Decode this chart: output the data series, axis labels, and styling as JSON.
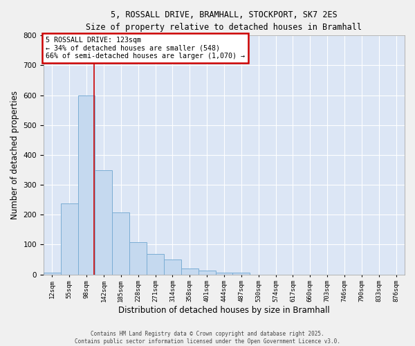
{
  "title_line1": "5, ROSSALL DRIVE, BRAMHALL, STOCKPORT, SK7 2ES",
  "title_line2": "Size of property relative to detached houses in Bramhall",
  "xlabel": "Distribution of detached houses by size in Bramhall",
  "ylabel": "Number of detached properties",
  "bar_color": "#c5d9ef",
  "bar_edge_color": "#7aadd4",
  "background_color": "#dce6f5",
  "grid_color": "#ffffff",
  "annotation_box_color": "#cc0000",
  "vline_color": "#cc0000",
  "bins": [
    "12sqm",
    "55sqm",
    "98sqm",
    "142sqm",
    "185sqm",
    "228sqm",
    "271sqm",
    "314sqm",
    "358sqm",
    "401sqm",
    "444sqm",
    "487sqm",
    "530sqm",
    "574sqm",
    "617sqm",
    "660sqm",
    "703sqm",
    "746sqm",
    "790sqm",
    "833sqm",
    "876sqm"
  ],
  "values": [
    5,
    237,
    600,
    350,
    207,
    108,
    68,
    50,
    20,
    14,
    5,
    5,
    0,
    0,
    0,
    0,
    0,
    0,
    0,
    0,
    0
  ],
  "ylim": [
    0,
    800
  ],
  "yticks": [
    0,
    100,
    200,
    300,
    400,
    500,
    600,
    700,
    800
  ],
  "annotation_line1": "5 ROSSALL DRIVE: 123sqm",
  "annotation_line2": "← 34% of detached houses are smaller (548)",
  "annotation_line3": "66% of semi-detached houses are larger (1,070) →",
  "vline_x_index": 2.43,
  "footer_line1": "Contains HM Land Registry data © Crown copyright and database right 2025.",
  "footer_line2": "Contains public sector information licensed under the Open Government Licence v3.0."
}
